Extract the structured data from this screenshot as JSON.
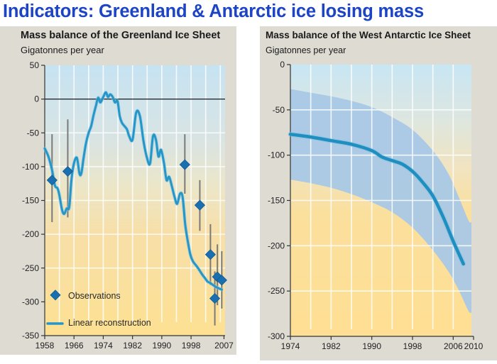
{
  "page": {
    "title": "Indicators: Greenland & Antarctic ice losing mass"
  },
  "colors": {
    "title": "#1c44c4",
    "panel_bg": "#dedbd3",
    "sky_top": "#c6e3f2",
    "sand_bottom": "#fbdd90",
    "line": "#2596c8",
    "marker": "#1a6fb0",
    "band": "#a9c8e6",
    "errorbar": "#7a7a7a"
  },
  "chart_data": [
    {
      "id": "greenland",
      "type": "line",
      "title": "Mass balance of the Greenland Ice Sheet",
      "ylabel": "Gigatonnes per year",
      "xlabel": "",
      "xlim": [
        1958,
        2007.3
      ],
      "ylim": [
        -350,
        50
      ],
      "xticks": [
        1958,
        1966,
        1974,
        1982,
        1990,
        1998,
        2007
      ],
      "yticks": [
        50,
        0,
        -50,
        -100,
        -150,
        -200,
        -250,
        -300,
        -350
      ],
      "ytick_labels": [
        "50",
        "0",
        "-50",
        "-100",
        "-150",
        "-200",
        "-250",
        "-300",
        "-350"
      ],
      "grid": true,
      "zero_line": true,
      "legend": {
        "position": "bottom-left",
        "entries": [
          {
            "label": "Observations",
            "marker": "diamond"
          },
          {
            "label": "Linear reconstruction",
            "marker": "line"
          }
        ]
      },
      "series": [
        {
          "name": "Linear reconstruction",
          "x": [
            1958,
            1959,
            1960,
            1960.8,
            1961.5,
            1962,
            1962.7,
            1963.3,
            1964,
            1964.7,
            1965.3,
            1966,
            1966.8,
            1967.5,
            1968,
            1968.6,
            1969.3,
            1970,
            1970.7,
            1971.3,
            1972,
            1972.6,
            1973.2,
            1974,
            1974.7,
            1975.3,
            1975.9,
            1976.6,
            1977.2,
            1977.9,
            1978.5,
            1979.1,
            1979.8,
            1980.5,
            1981.1,
            1982,
            1983,
            1984,
            1985,
            1986,
            1986.8,
            1987.6,
            1988.4,
            1989.1,
            1989.8,
            1990.6,
            1991.3,
            1992,
            1992.8,
            1993.5,
            1994.2,
            1995,
            1995.7,
            1996.4,
            1997.1,
            1997.8,
            1998.5,
            1999.2,
            1999.9,
            2000.5,
            2001.1,
            2001.8,
            2002.5,
            2003.2,
            2004,
            2004.8,
            2005.6,
            2006.4
          ],
          "values": [
            -73,
            -85,
            -105,
            -128,
            -132,
            -142,
            -163,
            -170,
            -162,
            -160,
            -120,
            -95,
            -87,
            -110,
            -110,
            -88,
            -65,
            -50,
            -40,
            -25,
            -10,
            2,
            -5,
            3,
            10,
            3,
            7,
            3,
            -5,
            -3,
            -25,
            -35,
            -40,
            -45,
            -55,
            -60,
            -20,
            -25,
            -62,
            -88,
            -95,
            -55,
            -60,
            -85,
            -75,
            -95,
            -120,
            -115,
            -130,
            -145,
            -155,
            -140,
            -145,
            -185,
            -210,
            -230,
            -240,
            -245,
            -250,
            -255,
            -260,
            -265,
            -270,
            -272,
            -275,
            -278,
            -280,
            -282
          ]
        },
        {
          "name": "Observations",
          "type": "scatter",
          "points": [
            {
              "x": 1960,
              "y": -120,
              "err_low": -182,
              "err_high": -52
            },
            {
              "x": 1964.3,
              "y": -107,
              "err_low": -175,
              "err_high": -30
            },
            {
              "x": 1996.3,
              "y": -97,
              "err_low": -140,
              "err_high": -52
            },
            {
              "x": 2000.4,
              "y": -157,
              "err_low": -195,
              "err_high": -120
            },
            {
              "x": 2003.3,
              "y": -230,
              "err_low": -275,
              "err_high": -185
            },
            {
              "x": 2004.5,
              "y": -295,
              "err_low": -335,
              "err_high": -255
            },
            {
              "x": 2005.2,
              "y": -263,
              "err_low": -305,
              "err_high": -215
            },
            {
              "x": 2006.4,
              "y": -268,
              "err_low": -310,
              "err_high": -225
            }
          ]
        }
      ]
    },
    {
      "id": "west-antarctic",
      "type": "area",
      "title": "Mass balance of the West Antarctic Ice Sheet",
      "ylabel": "Gigatonnes per year",
      "xlabel": "",
      "xlim": [
        1974,
        2010
      ],
      "ylim": [
        -300,
        0
      ],
      "xticks": [
        1974,
        1982,
        1990,
        1998,
        2006,
        2010
      ],
      "yticks": [
        0,
        -50,
        -100,
        -150,
        -200,
        -250,
        -300
      ],
      "ytick_labels": [
        "0",
        "-50",
        "-100",
        "-150",
        "-200",
        "-250",
        "-300"
      ],
      "grid": true,
      "series": [
        {
          "name": "Mass balance estimate",
          "x": [
            1974,
            1978,
            1982,
            1986,
            1990,
            1992,
            1994,
            1996,
            1998,
            2000,
            2002,
            2004,
            2006,
            2008
          ],
          "values": [
            -77,
            -80,
            -84,
            -88,
            -95,
            -102,
            -106,
            -110,
            -118,
            -130,
            -145,
            -168,
            -195,
            -220
          ]
        },
        {
          "name": "Uncertainty band",
          "x": [
            1974,
            1978,
            1982,
            1986,
            1990,
            1994,
            1998,
            2002,
            2005,
            2007,
            2009
          ],
          "upper": [
            -27,
            -31,
            -35,
            -40,
            -47,
            -58,
            -72,
            -95,
            -120,
            -145,
            -172
          ],
          "lower": [
            -127,
            -131,
            -136,
            -143,
            -152,
            -163,
            -180,
            -205,
            -228,
            -248,
            -272
          ]
        }
      ]
    }
  ]
}
